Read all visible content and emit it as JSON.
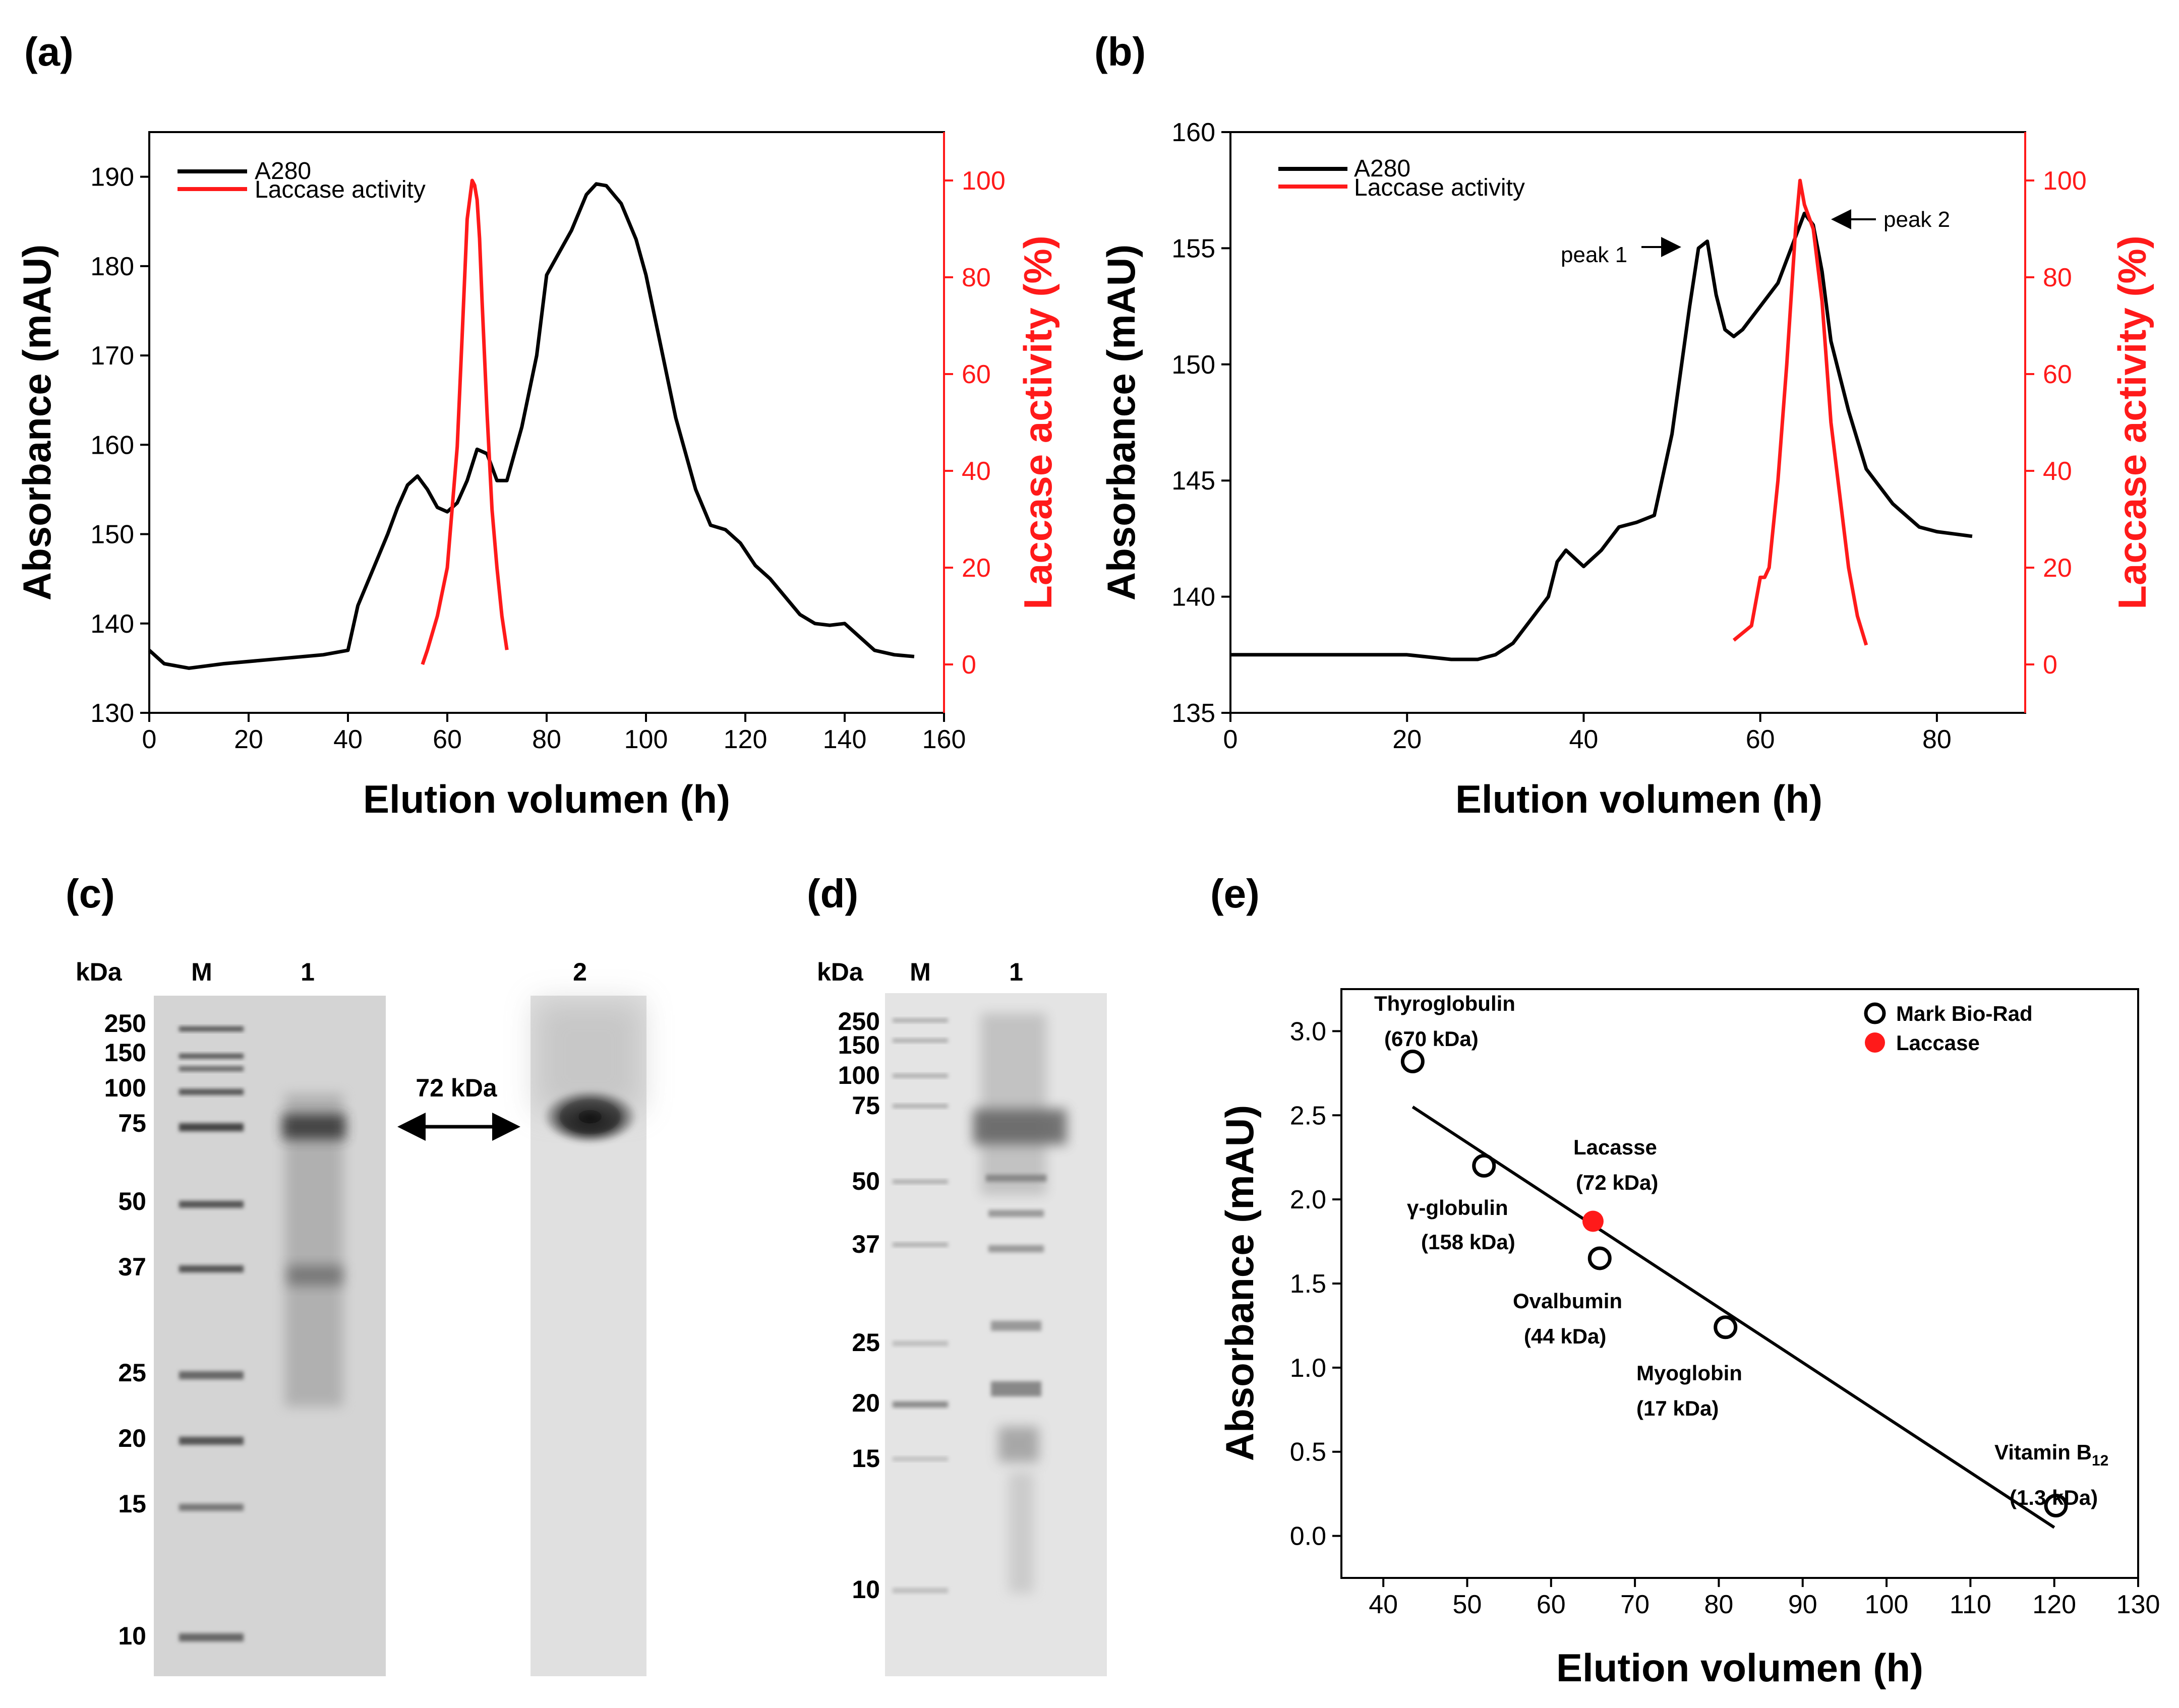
{
  "panels": {
    "a": "(a)",
    "b": "(b)",
    "c": "(c)",
    "d": "(d)",
    "e": "(e)"
  },
  "colors": {
    "black": "#000000",
    "red": "#ff1a1a",
    "gel_bg": "#d6d6d6",
    "gel_bg_light": "#e6e6e6"
  },
  "chart_data": [
    {
      "id": "a",
      "type": "line",
      "xlabel": "Elution volumen (h)",
      "ylabel": "Absorbance (mAU)",
      "y2label": "Laccase activity (%)",
      "xlim": [
        0,
        160
      ],
      "xticks": [
        0,
        20,
        40,
        60,
        80,
        100,
        120,
        140,
        160
      ],
      "ylim": [
        130,
        195
      ],
      "yticks": [
        130,
        140,
        150,
        160,
        170,
        180,
        190
      ],
      "y2lim": [
        -10,
        110
      ],
      "y2ticks": [
        0,
        20,
        40,
        60,
        80,
        100
      ],
      "legend": [
        "A280",
        "Laccase activity"
      ],
      "series": [
        {
          "name": "A280",
          "axis": "left",
          "color": "#000000",
          "x": [
            0,
            3,
            8,
            15,
            25,
            35,
            40,
            42,
            45,
            48,
            50,
            52,
            54,
            56,
            58,
            60,
            62,
            64,
            66,
            68,
            70,
            72,
            75,
            78,
            80,
            82,
            85,
            88,
            90,
            92,
            95,
            98,
            100,
            103,
            106,
            110,
            113,
            116,
            119,
            122,
            125,
            128,
            131,
            134,
            137,
            140,
            143,
            146,
            150,
            154
          ],
          "y": [
            137,
            135.5,
            135,
            135.5,
            136,
            136.5,
            137,
            142,
            146,
            150,
            153,
            155.5,
            156.5,
            155,
            153,
            152.5,
            153.5,
            156,
            159.5,
            159,
            156,
            156,
            162,
            170,
            179,
            181,
            184,
            188,
            189.2,
            189,
            187,
            183,
            179,
            171,
            163,
            155,
            151,
            150.5,
            149,
            146.5,
            145,
            143,
            141,
            140,
            139.8,
            140,
            138.5,
            137,
            136.5,
            136.3
          ]
        },
        {
          "name": "Laccase activity",
          "axis": "right",
          "color": "#ff1a1a",
          "x": [
            55,
            56,
            58,
            60,
            62,
            63,
            64,
            65,
            65.5,
            66,
            66.5,
            67,
            68,
            69,
            70,
            71,
            72
          ],
          "y": [
            0,
            3,
            10,
            20,
            45,
            68,
            92,
            100,
            99,
            96,
            88,
            75,
            52,
            32,
            20,
            10,
            3
          ]
        }
      ]
    },
    {
      "id": "b",
      "type": "line",
      "xlabel": "Elution volumen (h)",
      "ylabel": "Absorbance (mAU)",
      "y2label": "Laccase activity (%)",
      "xlim": [
        0,
        90
      ],
      "xticks": [
        0,
        20,
        40,
        60,
        80
      ],
      "ylim": [
        135,
        160
      ],
      "yticks": [
        135,
        140,
        145,
        150,
        155,
        160
      ],
      "y2lim": [
        -10,
        110
      ],
      "y2ticks": [
        0,
        20,
        40,
        60,
        80,
        100
      ],
      "legend": [
        "A280",
        "Laccase activity"
      ],
      "annotations": [
        "peak 1",
        "peak 2"
      ],
      "series": [
        {
          "name": "A280",
          "axis": "left",
          "color": "#000000",
          "x": [
            0,
            5,
            10,
            15,
            20,
            25,
            28,
            30,
            32,
            34,
            36,
            37,
            38,
            40,
            42,
            44,
            46,
            48,
            50,
            52,
            53,
            54,
            55,
            56,
            57,
            58,
            60,
            62,
            63,
            64,
            65,
            66,
            67,
            68,
            70,
            72,
            75,
            78,
            80,
            82,
            84
          ],
          "y": [
            137.5,
            137.5,
            137.5,
            137.5,
            137.5,
            137.3,
            137.3,
            137.5,
            138,
            139,
            140,
            141.5,
            142,
            141.3,
            142,
            143,
            143.2,
            143.5,
            147,
            152.5,
            155,
            155.3,
            153,
            151.5,
            151.2,
            151.5,
            152.5,
            153.5,
            154.5,
            155.5,
            156.5,
            156,
            154,
            151,
            148,
            145.5,
            144,
            143,
            142.8,
            142.7,
            142.6
          ]
        },
        {
          "name": "Laccase activity",
          "axis": "right",
          "color": "#ff1a1a",
          "x": [
            57,
            59,
            60,
            60.5,
            61,
            62,
            63,
            64,
            64.5,
            65,
            66,
            67,
            68,
            69,
            70,
            71,
            72
          ],
          "y": [
            5,
            8,
            18,
            18,
            20,
            38,
            62,
            90,
            100,
            95,
            90,
            75,
            50,
            35,
            20,
            10,
            4
          ]
        }
      ]
    },
    {
      "id": "e",
      "type": "scatter",
      "xlabel": "Elution volumen (h)",
      "ylabel": "Absorbance (mAU)",
      "xlim": [
        35,
        130
      ],
      "xticks": [
        40,
        50,
        60,
        70,
        80,
        90,
        100,
        110,
        120,
        130
      ],
      "ylim": [
        -0.25,
        3.25
      ],
      "yticks": [
        0.0,
        0.5,
        1.0,
        1.5,
        2.0,
        2.5,
        3.0
      ],
      "legend": [
        "Mark Bio-Rad",
        "Laccase"
      ],
      "fit": {
        "x": [
          43.5,
          120
        ],
        "y": [
          2.55,
          0.05
        ]
      },
      "standards": [
        {
          "name": "Thyroglobulin",
          "size": "(670 kDa)",
          "x": 43.5,
          "y": 2.82
        },
        {
          "name": "γ-globulin",
          "size": "(158 kDa)",
          "x": 52,
          "y": 2.2
        },
        {
          "name": "Ovalbumin",
          "size": "(44 kDa)",
          "x": 65.8,
          "y": 1.65
        },
        {
          "name": "Myoglobin",
          "size": "(17 kDa)",
          "x": 80.8,
          "y": 1.24
        },
        {
          "name": "Vitamin B",
          "sub": "12",
          "size": "(1.3 kDa)",
          "x": 120.2,
          "y": 0.18
        }
      ],
      "sample": {
        "name": "Lacasse",
        "size": "(72 kDa)",
        "x": 65,
        "y": 1.87
      }
    }
  ],
  "gel_c": {
    "unit": "kDa",
    "lanes": [
      "M",
      "1",
      "2"
    ],
    "markers": [
      "250",
      "150",
      "100",
      "75",
      "50",
      "37",
      "25",
      "20",
      "15",
      "10"
    ],
    "arrow_label": "72 kDa"
  },
  "gel_d": {
    "unit": "kDa",
    "lanes": [
      "M",
      "1"
    ],
    "markers": [
      "250",
      "150",
      "100",
      "75",
      "50",
      "37",
      "25",
      "20",
      "15",
      "10"
    ]
  }
}
